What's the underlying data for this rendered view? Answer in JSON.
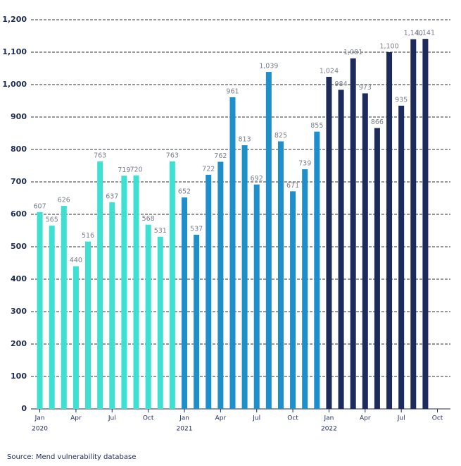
{
  "chart_data": {
    "type": "bar",
    "categories": [
      "Jan",
      null,
      null,
      "Apr",
      null,
      null,
      "Jul",
      null,
      null,
      "Oct",
      null,
      null,
      "Jan",
      null,
      null,
      "Apr",
      null,
      null,
      "Jul",
      null,
      null,
      "Oct",
      null,
      null,
      "Jan",
      null,
      null,
      "Apr",
      null,
      null,
      "Jul",
      null,
      null,
      "Oct"
    ],
    "year_labels": [
      "2020",
      null,
      null,
      null,
      null,
      null,
      null,
      null,
      null,
      null,
      null,
      null,
      "2021",
      null,
      null,
      null,
      null,
      null,
      null,
      null,
      null,
      null,
      null,
      null,
      "2022",
      null,
      null,
      null,
      null,
      null,
      null,
      null,
      null,
      null
    ],
    "values": [
      607,
      565,
      626,
      440,
      516,
      763,
      637,
      719,
      720,
      568,
      531,
      763,
      652,
      537,
      722,
      762,
      961,
      813,
      692,
      1039,
      825,
      671,
      739,
      855,
      1024,
      984,
      1081,
      973,
      866,
      1100,
      935,
      1140,
      1141,
      null
    ],
    "value_labels": [
      "607",
      "565",
      "626",
      "440",
      "516",
      "763",
      "637",
      "719",
      "720",
      "568",
      "531",
      "763",
      "652",
      "537",
      "722",
      "762",
      "961",
      "813",
      "692",
      "1,039",
      "825",
      "671",
      "739",
      "855",
      "1,024",
      "984",
      "1,081",
      "973",
      "866",
      "1,100",
      "935",
      "1,140",
      "1,141",
      null
    ],
    "colors": [
      "#3ee0d2",
      "#3ee0d2",
      "#3ee0d2",
      "#3ee0d2",
      "#3ee0d2",
      "#3ee0d2",
      "#3ee0d2",
      "#3ee0d2",
      "#3ee0d2",
      "#3ee0d2",
      "#3ee0d2",
      "#3ee0d2",
      "#1f8fcb",
      "#1f8fcb",
      "#1f8fcb",
      "#1f8fcb",
      "#1f8fcb",
      "#1f8fcb",
      "#1f8fcb",
      "#1f8fcb",
      "#1f8fcb",
      "#1f8fcb",
      "#1f8fcb",
      "#1f8fcb",
      "#1d2a5c",
      "#1d2a5c",
      "#1d2a5c",
      "#1d2a5c",
      "#1d2a5c",
      "#1d2a5c",
      "#1d2a5c",
      "#1d2a5c",
      "#1d2a5c",
      null
    ],
    "ylim": [
      0,
      1200
    ],
    "yticks": [
      0,
      100,
      200,
      300,
      400,
      500,
      600,
      700,
      800,
      900,
      {
        "value": 1000,
        "label": "1,000"
      },
      {
        "value": 1100,
        "label": "1,100"
      },
      {
        "value": 1200,
        "label": "1,200"
      }
    ],
    "grid": true,
    "source": "Source: Mend vulnerability database"
  }
}
